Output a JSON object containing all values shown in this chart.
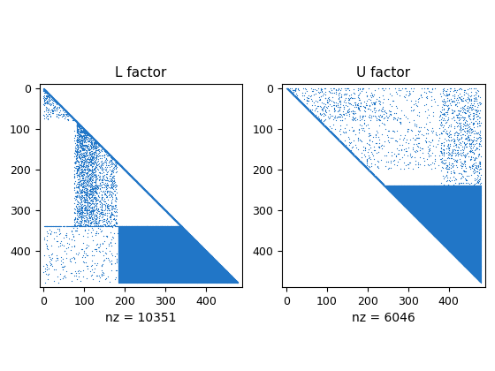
{
  "title_L": "L factor",
  "title_U": "U factor",
  "xlabel_L": "nz = 10351",
  "xlabel_U": "nz = 6046",
  "nz_L": 10351,
  "nz_U": 6046,
  "n": 480,
  "marker_color": "#2176c7",
  "marker_size": 0.8,
  "xlim": [
    -10,
    490
  ],
  "ylim": [
    490,
    -10
  ],
  "xticks": [
    0,
    100,
    200,
    300,
    400
  ],
  "yticks": [
    0,
    100,
    200,
    300,
    400
  ],
  "title_fontsize": 11,
  "xlabel_fontsize": 10
}
